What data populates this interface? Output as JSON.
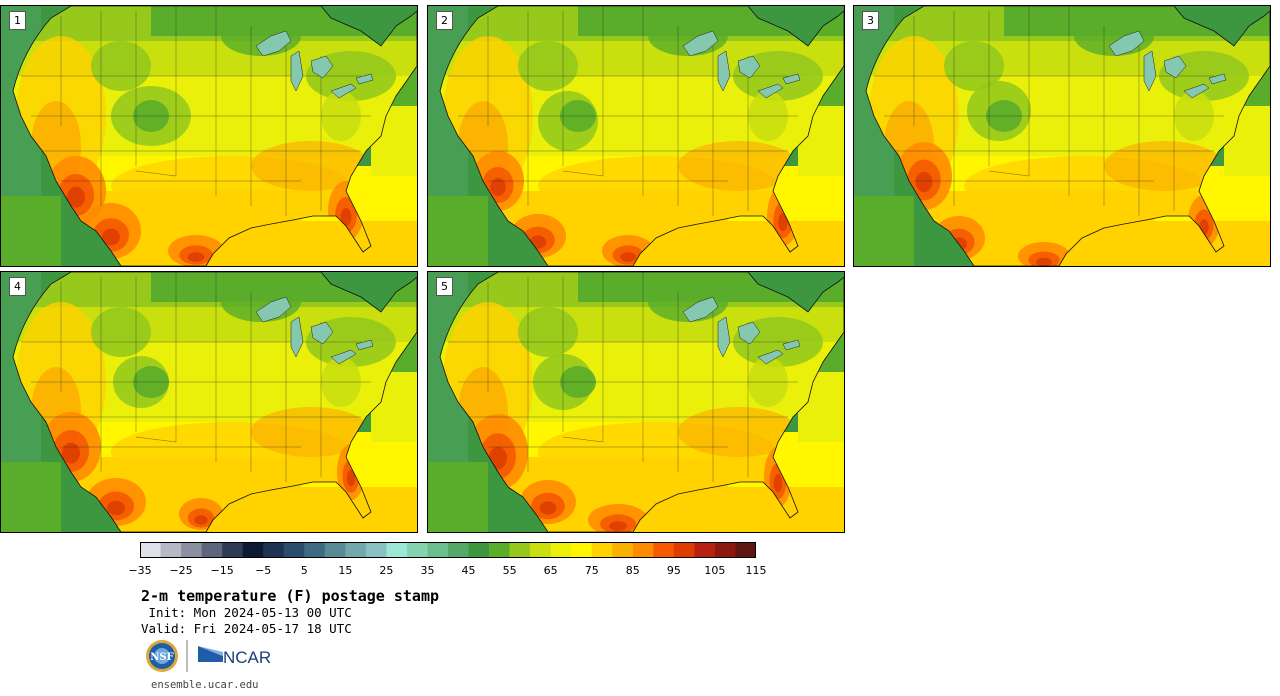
{
  "panels": [
    {
      "label": "1"
    },
    {
      "label": "2"
    },
    {
      "label": "3"
    },
    {
      "label": "4"
    },
    {
      "label": "5"
    }
  ],
  "colorbar": {
    "colors": [
      "#e0e2ea",
      "#b6b9c4",
      "#8c90a0",
      "#5f667c",
      "#2e3a56",
      "#0c1a33",
      "#1c3452",
      "#2b4d6c",
      "#3e6b82",
      "#588a96",
      "#72a8ab",
      "#87c1c1",
      "#9ee6d6",
      "#85d4b1",
      "#6bbf8f",
      "#54a868",
      "#3d9640",
      "#5aad2a",
      "#96c91c",
      "#c9df0e",
      "#eaf00a",
      "#fff600",
      "#ffd200",
      "#fbb100",
      "#ff8c00",
      "#f55a00",
      "#de3d00",
      "#b72210",
      "#8c1810",
      "#5e160f"
    ],
    "ticks": [
      "−35",
      "−25",
      "−15",
      "−5",
      "5",
      "15",
      "25",
      "35",
      "45",
      "55",
      "65",
      "75",
      "85",
      "95",
      "105",
      "115"
    ]
  },
  "title": "2-m temperature (F) postage stamp",
  "init": " Init: Mon 2024-05-13 00 UTC",
  "valid": "Valid: Fri 2024-05-17 18 UTC",
  "logos": {
    "nsf": "NSF",
    "ncar": "NCAR"
  },
  "url": "ensemble.ucar.edu"
}
